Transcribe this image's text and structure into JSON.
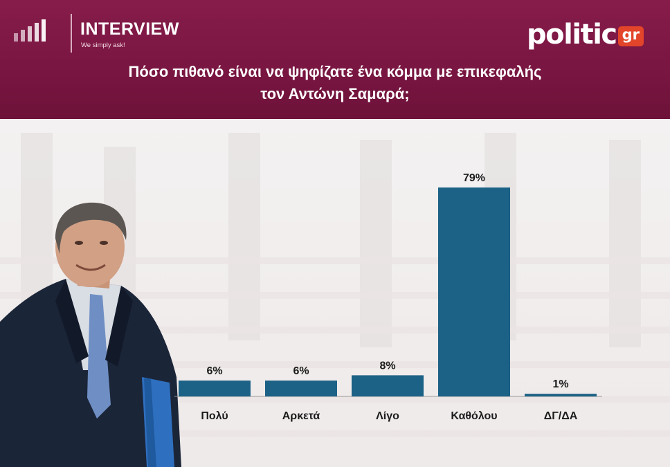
{
  "header": {
    "brand_name": "INTERVIEW",
    "brand_tagline": "We simply ask!",
    "logo_word": "politic",
    "logo_suffix": "gr",
    "question_line1": "Πόσο πιθανό είναι να ψηφίζατε ένα κόμμα με επικεφαλής",
    "question_line2": "τον Αντώνη Σαμαρά;"
  },
  "colors": {
    "header": "#7a1642",
    "bar": "#1c6186",
    "logo_box": "#e2452a"
  },
  "chart_data": {
    "type": "bar",
    "title": "Πόσο πιθανό είναι να ψηφίζατε ένα κόμμα με επικεφαλής τον Αντώνη Σαμαρά;",
    "categories": [
      "Πολύ",
      "Αρκετά",
      "Λίγο",
      "Καθόλου",
      "ΔΓ/ΔΑ"
    ],
    "values": [
      6,
      6,
      8,
      79,
      1
    ],
    "value_labels": [
      "6%",
      "6%",
      "8%",
      "79%",
      "1%"
    ],
    "unit": "%",
    "ylim": [
      0,
      100
    ],
    "grid": false,
    "legend": "none"
  }
}
